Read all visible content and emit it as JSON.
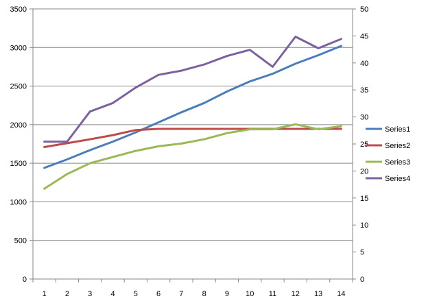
{
  "chart_data": {
    "type": "line",
    "x": [
      "1",
      "2",
      "3",
      "4",
      "5",
      "6",
      "7",
      "8",
      "9",
      "10",
      "11",
      "12",
      "13",
      "14"
    ],
    "left_axis": {
      "range": [
        0,
        3500
      ],
      "ticks": [
        "0",
        "500",
        "1000",
        "1500",
        "2000",
        "2500",
        "3000",
        "3500"
      ]
    },
    "right_axis": {
      "range": [
        0,
        50
      ],
      "ticks": [
        "0",
        "5",
        "10",
        "15",
        "20",
        "25",
        "30",
        "35",
        "40",
        "45",
        "50"
      ]
    },
    "grid": "horizontal",
    "legend": "right",
    "series": [
      {
        "name": "Series1",
        "axis": "left",
        "color": "#4a7ebb",
        "values": [
          1440,
          1550,
          1670,
          1780,
          1900,
          2030,
          2160,
          2280,
          2430,
          2560,
          2660,
          2790,
          2900,
          3020
        ]
      },
      {
        "name": "Series2",
        "axis": "left",
        "color": "#be4b48",
        "values": [
          1710,
          1760,
          1810,
          1865,
          1930,
          1945,
          1945,
          1945,
          1945,
          1945,
          1945,
          1945,
          1945,
          1945
        ]
      },
      {
        "name": "Series3",
        "axis": "left",
        "color": "#98b954",
        "values": [
          1170,
          1360,
          1500,
          1580,
          1660,
          1720,
          1755,
          1810,
          1890,
          1940,
          1940,
          2005,
          1940,
          1980
        ]
      },
      {
        "name": "Series4",
        "axis": "left",
        "color": "#7d60a0",
        "values": [
          1780,
          1780,
          2170,
          2280,
          2480,
          2645,
          2700,
          2780,
          2890,
          2970,
          2750,
          3140,
          2990,
          3110
        ]
      }
    ]
  }
}
